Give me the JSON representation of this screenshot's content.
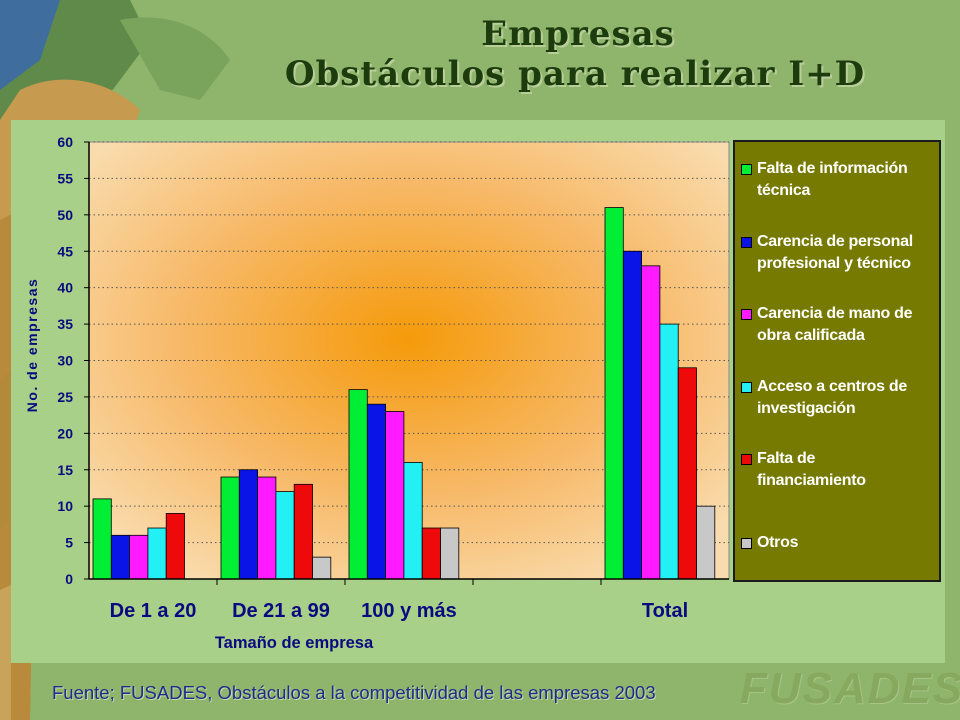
{
  "slide": {
    "title_line1": "Empresas",
    "title_line2": "Obstáculos para realizar I+D",
    "source": "Fuente; FUSADES, Obstáculos a la competitividad de las empresas 2003",
    "logo_text": "FUSADES"
  },
  "colors": {
    "slide_bg": "#8fb46c",
    "panel_bg": "#a9d089",
    "plot_center": "#f59a0a",
    "plot_edge": "#f9d7a2",
    "legend_bg": "#777a00",
    "label_blue": "#0a0a80"
  },
  "chart_data": {
    "type": "bar",
    "xlabel": "Tamaño de empresa",
    "ylabel": "No. de empresas",
    "ylim": [
      0,
      60
    ],
    "yticks": [
      0,
      5,
      10,
      15,
      20,
      25,
      30,
      35,
      40,
      45,
      50,
      55,
      60
    ],
    "grid": "horizontal dotted",
    "legend_position": "right",
    "categories": [
      "De 1 a 20",
      "De 21 a 99",
      "100 y más",
      "",
      "Total"
    ],
    "series": [
      {
        "name": "Falta de información técnica",
        "color": "#00ee33",
        "values": [
          11,
          14,
          26,
          0,
          51
        ]
      },
      {
        "name": "Carencia de personal profesional y técnico",
        "color": "#0a14e6",
        "values": [
          6,
          15,
          24,
          0,
          45
        ]
      },
      {
        "name": "Carencia de mano de obra calificada",
        "color": "#ff1aff",
        "values": [
          6,
          14,
          23,
          0,
          43
        ]
      },
      {
        "name": "Acceso a centros de investigación",
        "color": "#22f0f4",
        "values": [
          7,
          12,
          16,
          0,
          35
        ]
      },
      {
        "name": "Falta de financiamiento",
        "color": "#ee0a0a",
        "values": [
          9,
          13,
          7,
          0,
          29
        ]
      },
      {
        "name": "Otros",
        "color": "#c8c8c8",
        "values": [
          0,
          3,
          7,
          0,
          10
        ]
      }
    ],
    "legend_labels": [
      [
        "Falta de información",
        "técnica"
      ],
      [
        "Carencia de personal",
        "profesional y técnico"
      ],
      [
        "Carencia de mano de",
        "obra calificada"
      ],
      [
        "Acceso a centros de",
        "investigación"
      ],
      [
        "Falta de",
        "financiamiento"
      ],
      [
        "Otros"
      ]
    ]
  }
}
